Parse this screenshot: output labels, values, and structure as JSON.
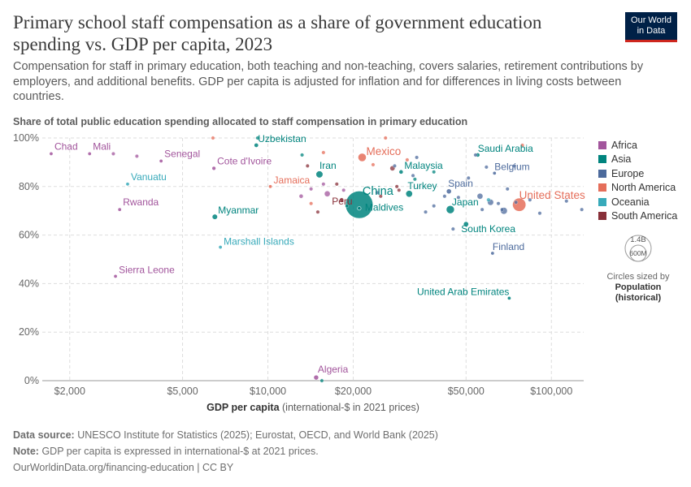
{
  "title": "Primary school staff compensation as a share of government education spending vs. GDP per capita, 2023",
  "subtitle": "Compensation for staff in primary education, both teaching and non-teaching, covers salaries, retirement contributions by employers, and additional benefits. GDP per capita is adjusted for inflation and for differences in living costs between countries.",
  "logo": {
    "line1": "Our World",
    "line2": "in Data"
  },
  "footer": {
    "source_label": "Data source:",
    "source_text": "UNESCO Institute for Statistics (2025); Eurostat, OECD, and World Bank (2025)",
    "note_label": "Note:",
    "note_text": "GDP per capita is expressed in international-$ at 2021 prices.",
    "url": "OurWorldinData.org/financing-education | CC BY"
  },
  "size_legend": {
    "large": "1.4B",
    "small": "600M",
    "title": "Circles sized by",
    "variable": "Population",
    "variable_sub": "(historical)"
  },
  "chart_data": {
    "type": "scatter",
    "xscale": "log",
    "xlabel": "GDP per capita",
    "xlabel_unit": "(international-$ in 2021 prices)",
    "ylabel": "Share of total public education spending allocated to staff compensation in primary education",
    "xlim": [
      1600,
      130000
    ],
    "ylim": [
      0,
      100
    ],
    "xticks": [
      {
        "v": 2000,
        "label": "$2,000"
      },
      {
        "v": 5000,
        "label": "$5,000"
      },
      {
        "v": 10000,
        "label": "$10,000"
      },
      {
        "v": 20000,
        "label": "$20,000"
      },
      {
        "v": 50000,
        "label": "$50,000"
      },
      {
        "v": 100000,
        "label": "$100,000"
      }
    ],
    "yticks": [
      {
        "v": 0,
        "label": "0%"
      },
      {
        "v": 20,
        "label": "20%"
      },
      {
        "v": 40,
        "label": "40%"
      },
      {
        "v": 60,
        "label": "60%"
      },
      {
        "v": 80,
        "label": "80%"
      },
      {
        "v": 100,
        "label": "100%"
      }
    ],
    "grid": true,
    "legend_placement": "right",
    "regions": [
      {
        "name": "Africa",
        "color": "#a2559c"
      },
      {
        "name": "Asia",
        "color": "#00847e"
      },
      {
        "name": "Europe",
        "color": "#4c6a9c"
      },
      {
        "name": "North America",
        "color": "#e56e5a"
      },
      {
        "name": "Oceania",
        "color": "#38aaba"
      },
      {
        "name": "South America",
        "color": "#883039"
      }
    ],
    "points": [
      {
        "x": 1720,
        "y": 93.5,
        "region": "Africa",
        "label": "Chad",
        "pop": 18
      },
      {
        "x": 2350,
        "y": 93.5,
        "region": "Africa",
        "label": "Mali",
        "pop": 23
      },
      {
        "x": 2850,
        "y": 93.5,
        "region": "Africa",
        "pop": 10
      },
      {
        "x": 3450,
        "y": 92.5,
        "region": "Africa",
        "pop": 8
      },
      {
        "x": 4200,
        "y": 90.5,
        "region": "Africa",
        "label": "Senegal",
        "pop": 18
      },
      {
        "x": 6450,
        "y": 87.5,
        "region": "Africa",
        "label": "Cote d'Ivoire",
        "pop": 29
      },
      {
        "x": 3200,
        "y": 81,
        "region": "Oceania",
        "label": "Vanuatu",
        "pop": 0.3
      },
      {
        "x": 3000,
        "y": 70.5,
        "region": "Africa",
        "label": "Rwanda",
        "pop": 14
      },
      {
        "x": 6500,
        "y": 67.5,
        "region": "Asia",
        "label": "Myanmar",
        "pop": 54
      },
      {
        "x": 6800,
        "y": 55,
        "region": "Oceania",
        "label": "Marshall Islands",
        "pop": 0.04
      },
      {
        "x": 2900,
        "y": 43,
        "region": "Africa",
        "label": "Sierra Leone",
        "pop": 8.8
      },
      {
        "x": 14800,
        "y": 1.3,
        "region": "Africa",
        "label": "Algeria",
        "pop": 46
      },
      {
        "x": 15500,
        "y": 0,
        "region": "Asia",
        "pop": 5
      },
      {
        "x": 6400,
        "y": 100,
        "region": "North America",
        "pop": 2
      },
      {
        "x": 9200,
        "y": 100,
        "region": "Asia",
        "pop": 4
      },
      {
        "x": 9100,
        "y": 97,
        "region": "Asia",
        "label": "Uzbekistan",
        "pop": 36
      },
      {
        "x": 10200,
        "y": 80,
        "region": "North America",
        "label": "Jamaica",
        "pop": 2.8
      },
      {
        "x": 13200,
        "y": 93,
        "region": "Asia",
        "pop": 6
      },
      {
        "x": 13800,
        "y": 88.5,
        "region": "South America",
        "pop": 3
      },
      {
        "x": 15200,
        "y": 85,
        "region": "Asia",
        "label": "Iran",
        "pop": 90
      },
      {
        "x": 15700,
        "y": 94,
        "region": "North America",
        "pop": 2
      },
      {
        "x": 14200,
        "y": 79,
        "region": "Africa",
        "pop": 3
      },
      {
        "x": 15700,
        "y": 81,
        "region": "Africa",
        "pop": 5
      },
      {
        "x": 14200,
        "y": 73,
        "region": "North America",
        "pop": 5
      },
      {
        "x": 13100,
        "y": 76,
        "region": "Africa",
        "pop": 30
      },
      {
        "x": 16200,
        "y": 77,
        "region": "Africa",
        "pop": 60
      },
      {
        "x": 18200,
        "y": 74.5,
        "region": "South America",
        "label": "Peru",
        "pop": 34
      },
      {
        "x": 17500,
        "y": 81,
        "region": "South America",
        "pop": 3
      },
      {
        "x": 19000,
        "y": 72,
        "region": "Asia",
        "pop": 6
      },
      {
        "x": 18500,
        "y": 78.5,
        "region": "Africa",
        "pop": 3
      },
      {
        "x": 15000,
        "y": 69.5,
        "region": "South America",
        "pop": 12
      },
      {
        "x": 21000,
        "y": 72.5,
        "region": "Asia",
        "label": "China",
        "pop": 1410
      },
      {
        "x": 21000,
        "y": 71,
        "region": "Asia",
        "label": "Maldives",
        "pop": 0.5
      },
      {
        "x": 21500,
        "y": 92,
        "region": "North America",
        "label": "Mexico",
        "pop": 129
      },
      {
        "x": 23500,
        "y": 89,
        "region": "North America",
        "pop": 2
      },
      {
        "x": 24300,
        "y": 77.5,
        "region": "Europe",
        "pop": 3
      },
      {
        "x": 25000,
        "y": 76,
        "region": "South America",
        "pop": 3
      },
      {
        "x": 26000,
        "y": 100,
        "region": "North America",
        "pop": 1
      },
      {
        "x": 27500,
        "y": 87.5,
        "region": "South America",
        "pop": 45
      },
      {
        "x": 28000,
        "y": 88.5,
        "region": "Europe",
        "pop": 4
      },
      {
        "x": 28500,
        "y": 80,
        "region": "South America",
        "pop": 6
      },
      {
        "x": 29000,
        "y": 78.5,
        "region": "South America",
        "pop": 3
      },
      {
        "x": 29500,
        "y": 86,
        "region": "Asia",
        "label": "Malaysia",
        "pop": 34
      },
      {
        "x": 31000,
        "y": 91,
        "region": "North America",
        "pop": 1
      },
      {
        "x": 33000,
        "y": 83,
        "region": "Asia",
        "pop": 5
      },
      {
        "x": 31500,
        "y": 77,
        "region": "Asia",
        "label": "Turkey",
        "pop": 86
      },
      {
        "x": 32500,
        "y": 84.5,
        "region": "Europe",
        "pop": 4
      },
      {
        "x": 33500,
        "y": 92,
        "region": "Europe",
        "pop": 3
      },
      {
        "x": 36000,
        "y": 69.5,
        "region": "Europe",
        "pop": 5
      },
      {
        "x": 38500,
        "y": 86,
        "region": "Asia",
        "pop": 5
      },
      {
        "x": 38500,
        "y": 72,
        "region": "Europe",
        "pop": 4
      },
      {
        "x": 42000,
        "y": 76,
        "region": "Europe",
        "pop": 10
      },
      {
        "x": 43500,
        "y": 78,
        "region": "Europe",
        "label": "Spain",
        "pop": 48
      },
      {
        "x": 44000,
        "y": 70.5,
        "region": "Asia",
        "label": "Japan",
        "pop": 124
      },
      {
        "x": 45000,
        "y": 62.5,
        "region": "Europe",
        "pop": 5
      },
      {
        "x": 47000,
        "y": 75.5,
        "region": "Europe",
        "pop": 3
      },
      {
        "x": 50000,
        "y": 64.5,
        "region": "Asia",
        "label": "South Korea",
        "pop": 51
      },
      {
        "x": 51000,
        "y": 83.5,
        "region": "Europe",
        "pop": 5
      },
      {
        "x": 54000,
        "y": 93,
        "region": "Europe",
        "pop": 3
      },
      {
        "x": 55000,
        "y": 93,
        "region": "Asia",
        "label": "Saudi Arabia",
        "pop": 33
      },
      {
        "x": 56000,
        "y": 76,
        "region": "Europe",
        "pop": 60
      },
      {
        "x": 57000,
        "y": 70.5,
        "region": "Europe",
        "pop": 10
      },
      {
        "x": 59000,
        "y": 88,
        "region": "Europe",
        "pop": 4
      },
      {
        "x": 60000,
        "y": 74.5,
        "region": "Oceania",
        "pop": 27
      },
      {
        "x": 61000,
        "y": 73.5,
        "region": "Europe",
        "pop": 67
      },
      {
        "x": 62000,
        "y": 52.5,
        "region": "Europe",
        "label": "Finland",
        "pop": 5.6
      },
      {
        "x": 63000,
        "y": 85.5,
        "region": "Europe",
        "label": "Belgium",
        "pop": 12
      },
      {
        "x": 65000,
        "y": 73,
        "region": "Europe",
        "pop": 5
      },
      {
        "x": 67000,
        "y": 70.5,
        "region": "Europe",
        "pop": 17
      },
      {
        "x": 68000,
        "y": 70,
        "region": "Europe",
        "pop": 84
      },
      {
        "x": 70000,
        "y": 79,
        "region": "Europe",
        "pop": 9
      },
      {
        "x": 71000,
        "y": 34,
        "region": "Asia",
        "label": "United Arab Emirates",
        "pop": 10
      },
      {
        "x": 74000,
        "y": 88.5,
        "region": "Europe",
        "pop": 5
      },
      {
        "x": 75000,
        "y": 73.5,
        "region": "Europe",
        "pop": 4
      },
      {
        "x": 77000,
        "y": 72.5,
        "region": "North America",
        "label": "United States",
        "pop": 335
      },
      {
        "x": 79000,
        "y": 97,
        "region": "North America",
        "pop": 1
      },
      {
        "x": 84000,
        "y": 74.5,
        "region": "Europe",
        "pop": 5
      },
      {
        "x": 91000,
        "y": 69,
        "region": "Europe",
        "pop": 5
      },
      {
        "x": 113000,
        "y": 74,
        "region": "Europe",
        "pop": 5
      },
      {
        "x": 128000,
        "y": 70.5,
        "region": "Europe",
        "pop": 0.7
      }
    ]
  }
}
